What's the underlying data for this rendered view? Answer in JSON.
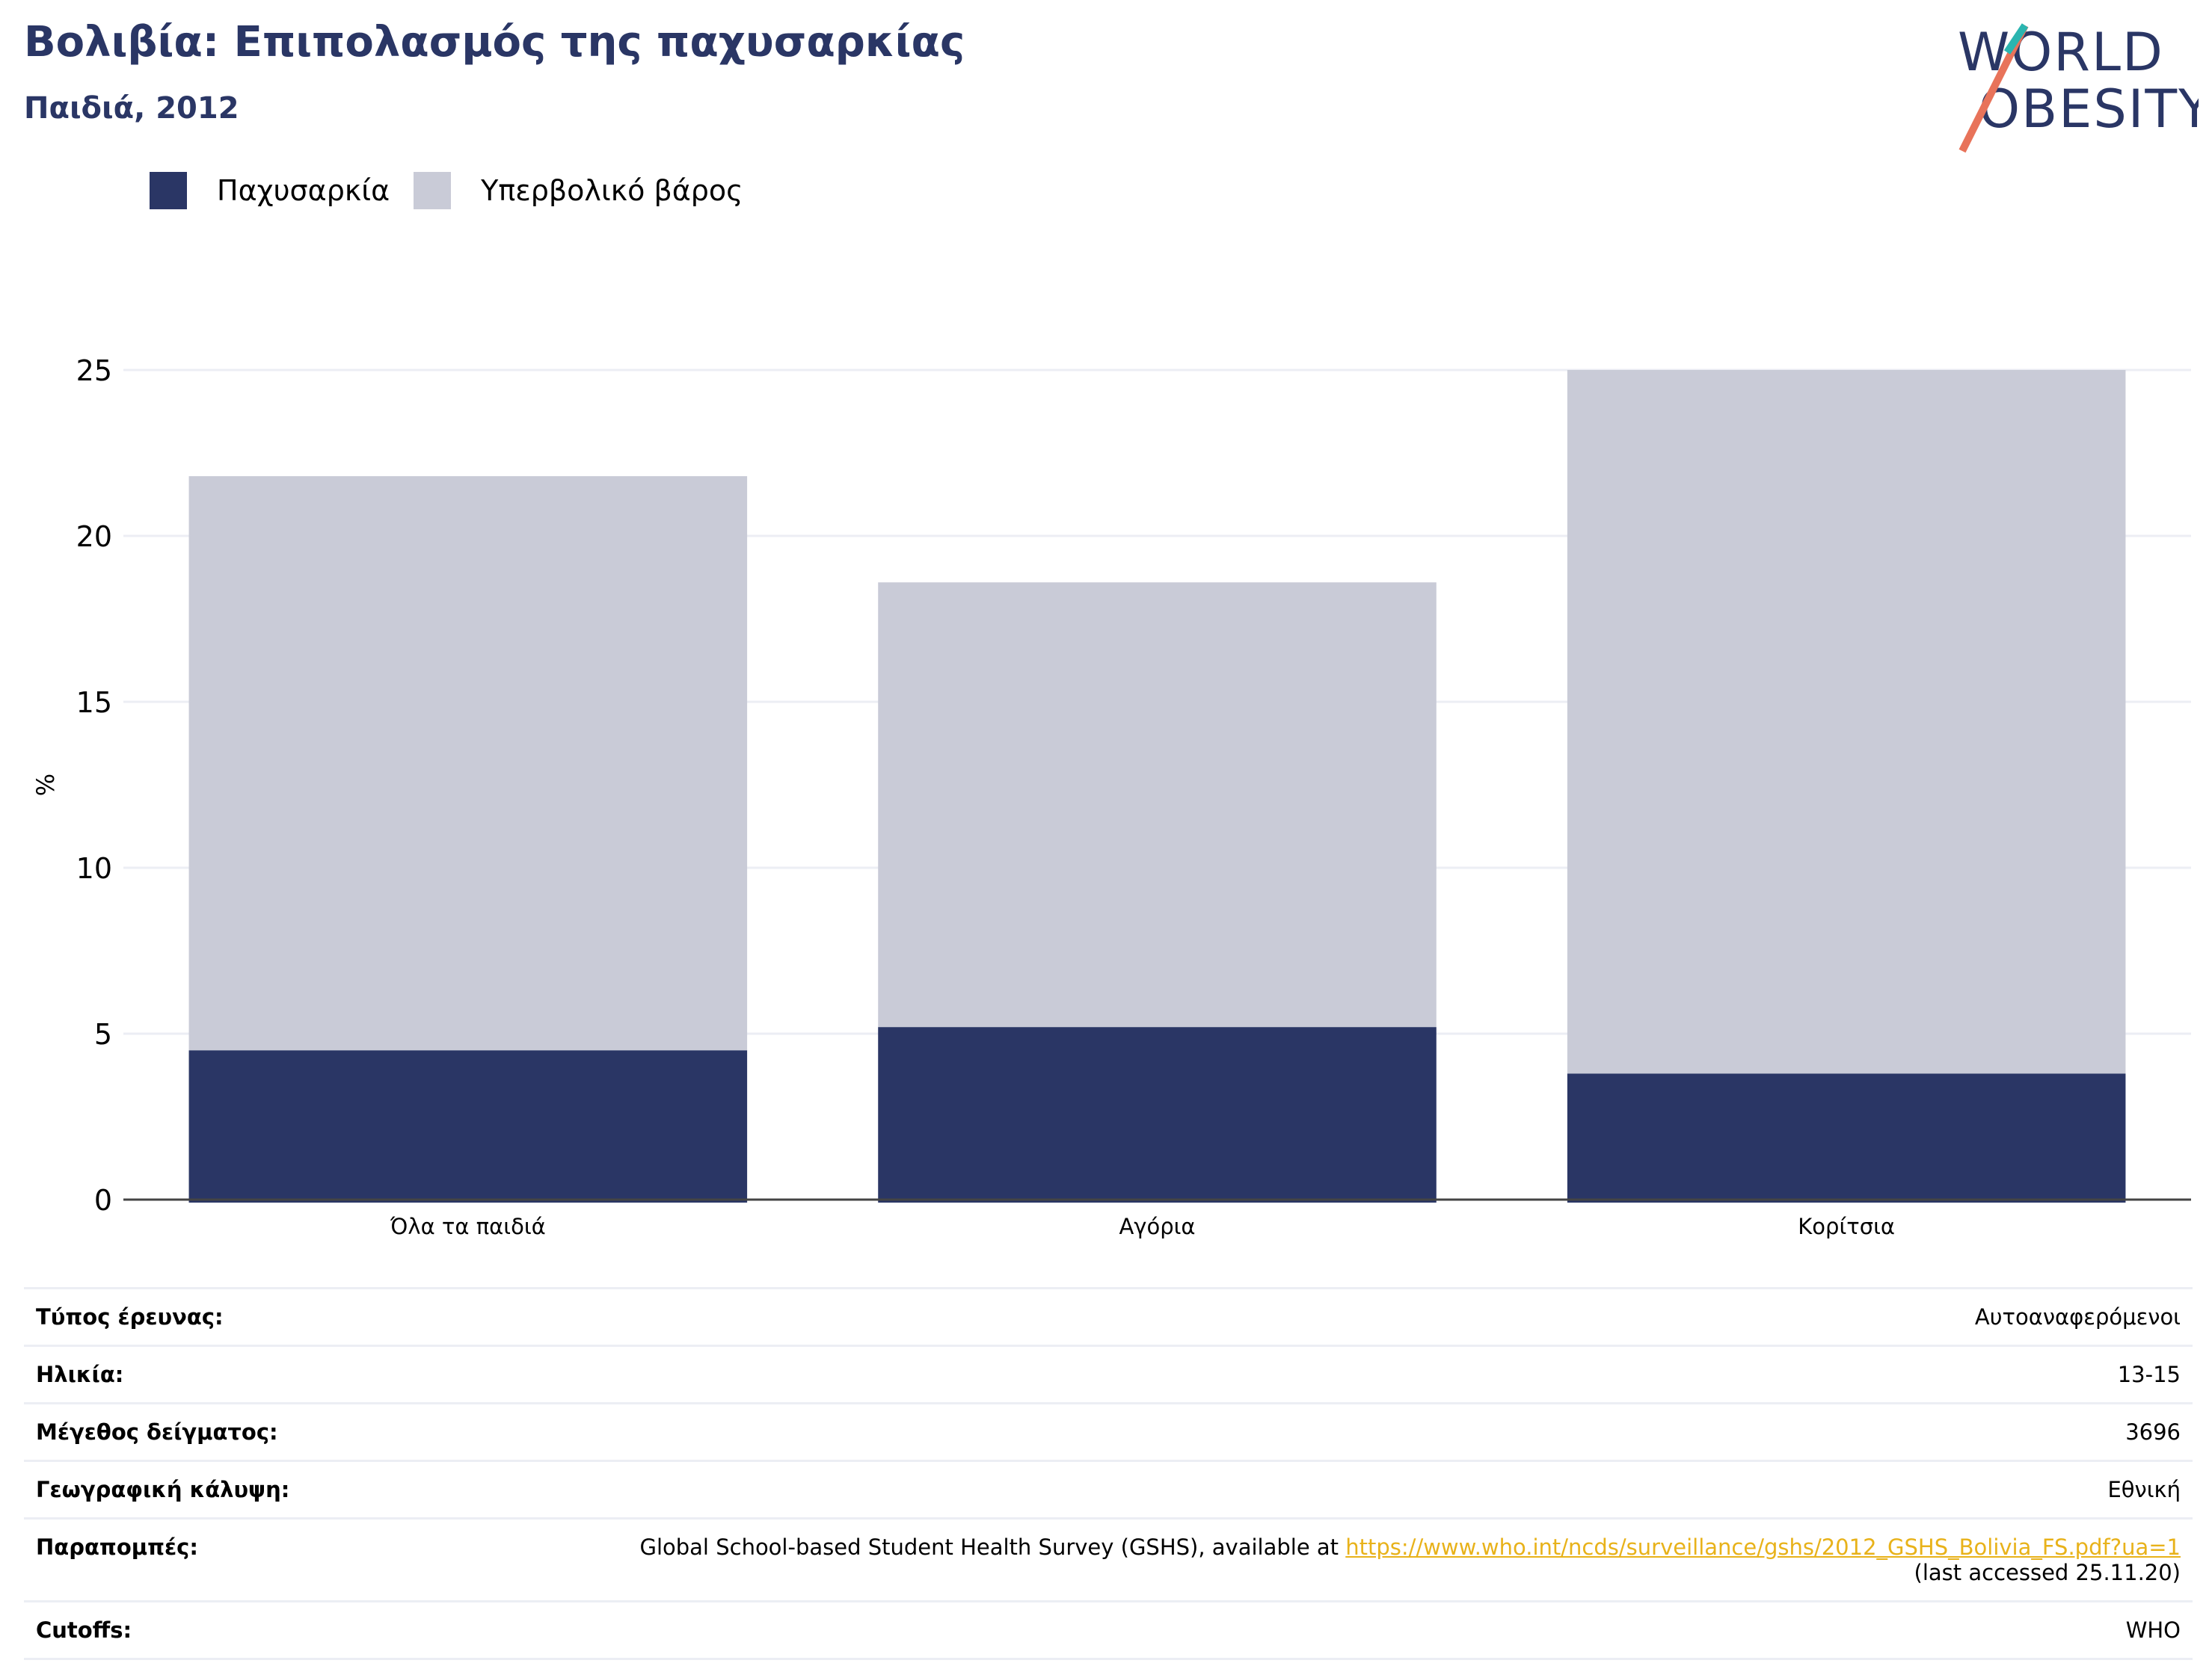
{
  "header": {
    "title": "Βολιβία: Επιπολασμός της παχυσαρκίας",
    "subtitle": "Παιδιά, 2012"
  },
  "logo": {
    "line1": "WORLD",
    "line2": "OBESITY"
  },
  "colors": {
    "obesity": "#2a3665",
    "overweight": "#c9cbd7",
    "accent_orange": "#e8735a",
    "accent_teal": "#2bb5b0"
  },
  "chart_data": {
    "type": "bar",
    "stacked": true,
    "categories": [
      "Όλα τα παιδιά",
      "Αγόρια",
      "Κορίτσια"
    ],
    "series": [
      {
        "name": "Παχυσαρκία",
        "values": [
          4.5,
          5.2,
          3.8
        ]
      },
      {
        "name": "Υπερβολικό βάρος",
        "values": [
          17.3,
          13.4,
          21.2
        ]
      }
    ],
    "ylabel": "%",
    "ylim": [
      0,
      25
    ],
    "yticks": [
      0,
      5,
      10,
      15,
      20,
      25
    ],
    "grid": true,
    "legend": "top-left"
  },
  "details": [
    {
      "key": "Τύπος έρευνας:",
      "value": "Αυτοαναφερόμενοι"
    },
    {
      "key": "Ηλικία:",
      "value": "13-15"
    },
    {
      "key": "Μέγεθος δείγματος:",
      "value": "3696"
    },
    {
      "key": "Γεωγραφική κάλυψη:",
      "value": "Εθνική"
    },
    {
      "key": "Παραπομπές:",
      "text": "Global School-based Student Health Survey (GSHS), available at ",
      "link": "https://www.who.int/ncds/surveillance/gshs/2012_GSHS_Bolivia_FS.pdf?ua=1",
      "after": "(last accessed 25.11.20)"
    },
    {
      "key": "Cutoffs:",
      "value": "WHO"
    }
  ]
}
